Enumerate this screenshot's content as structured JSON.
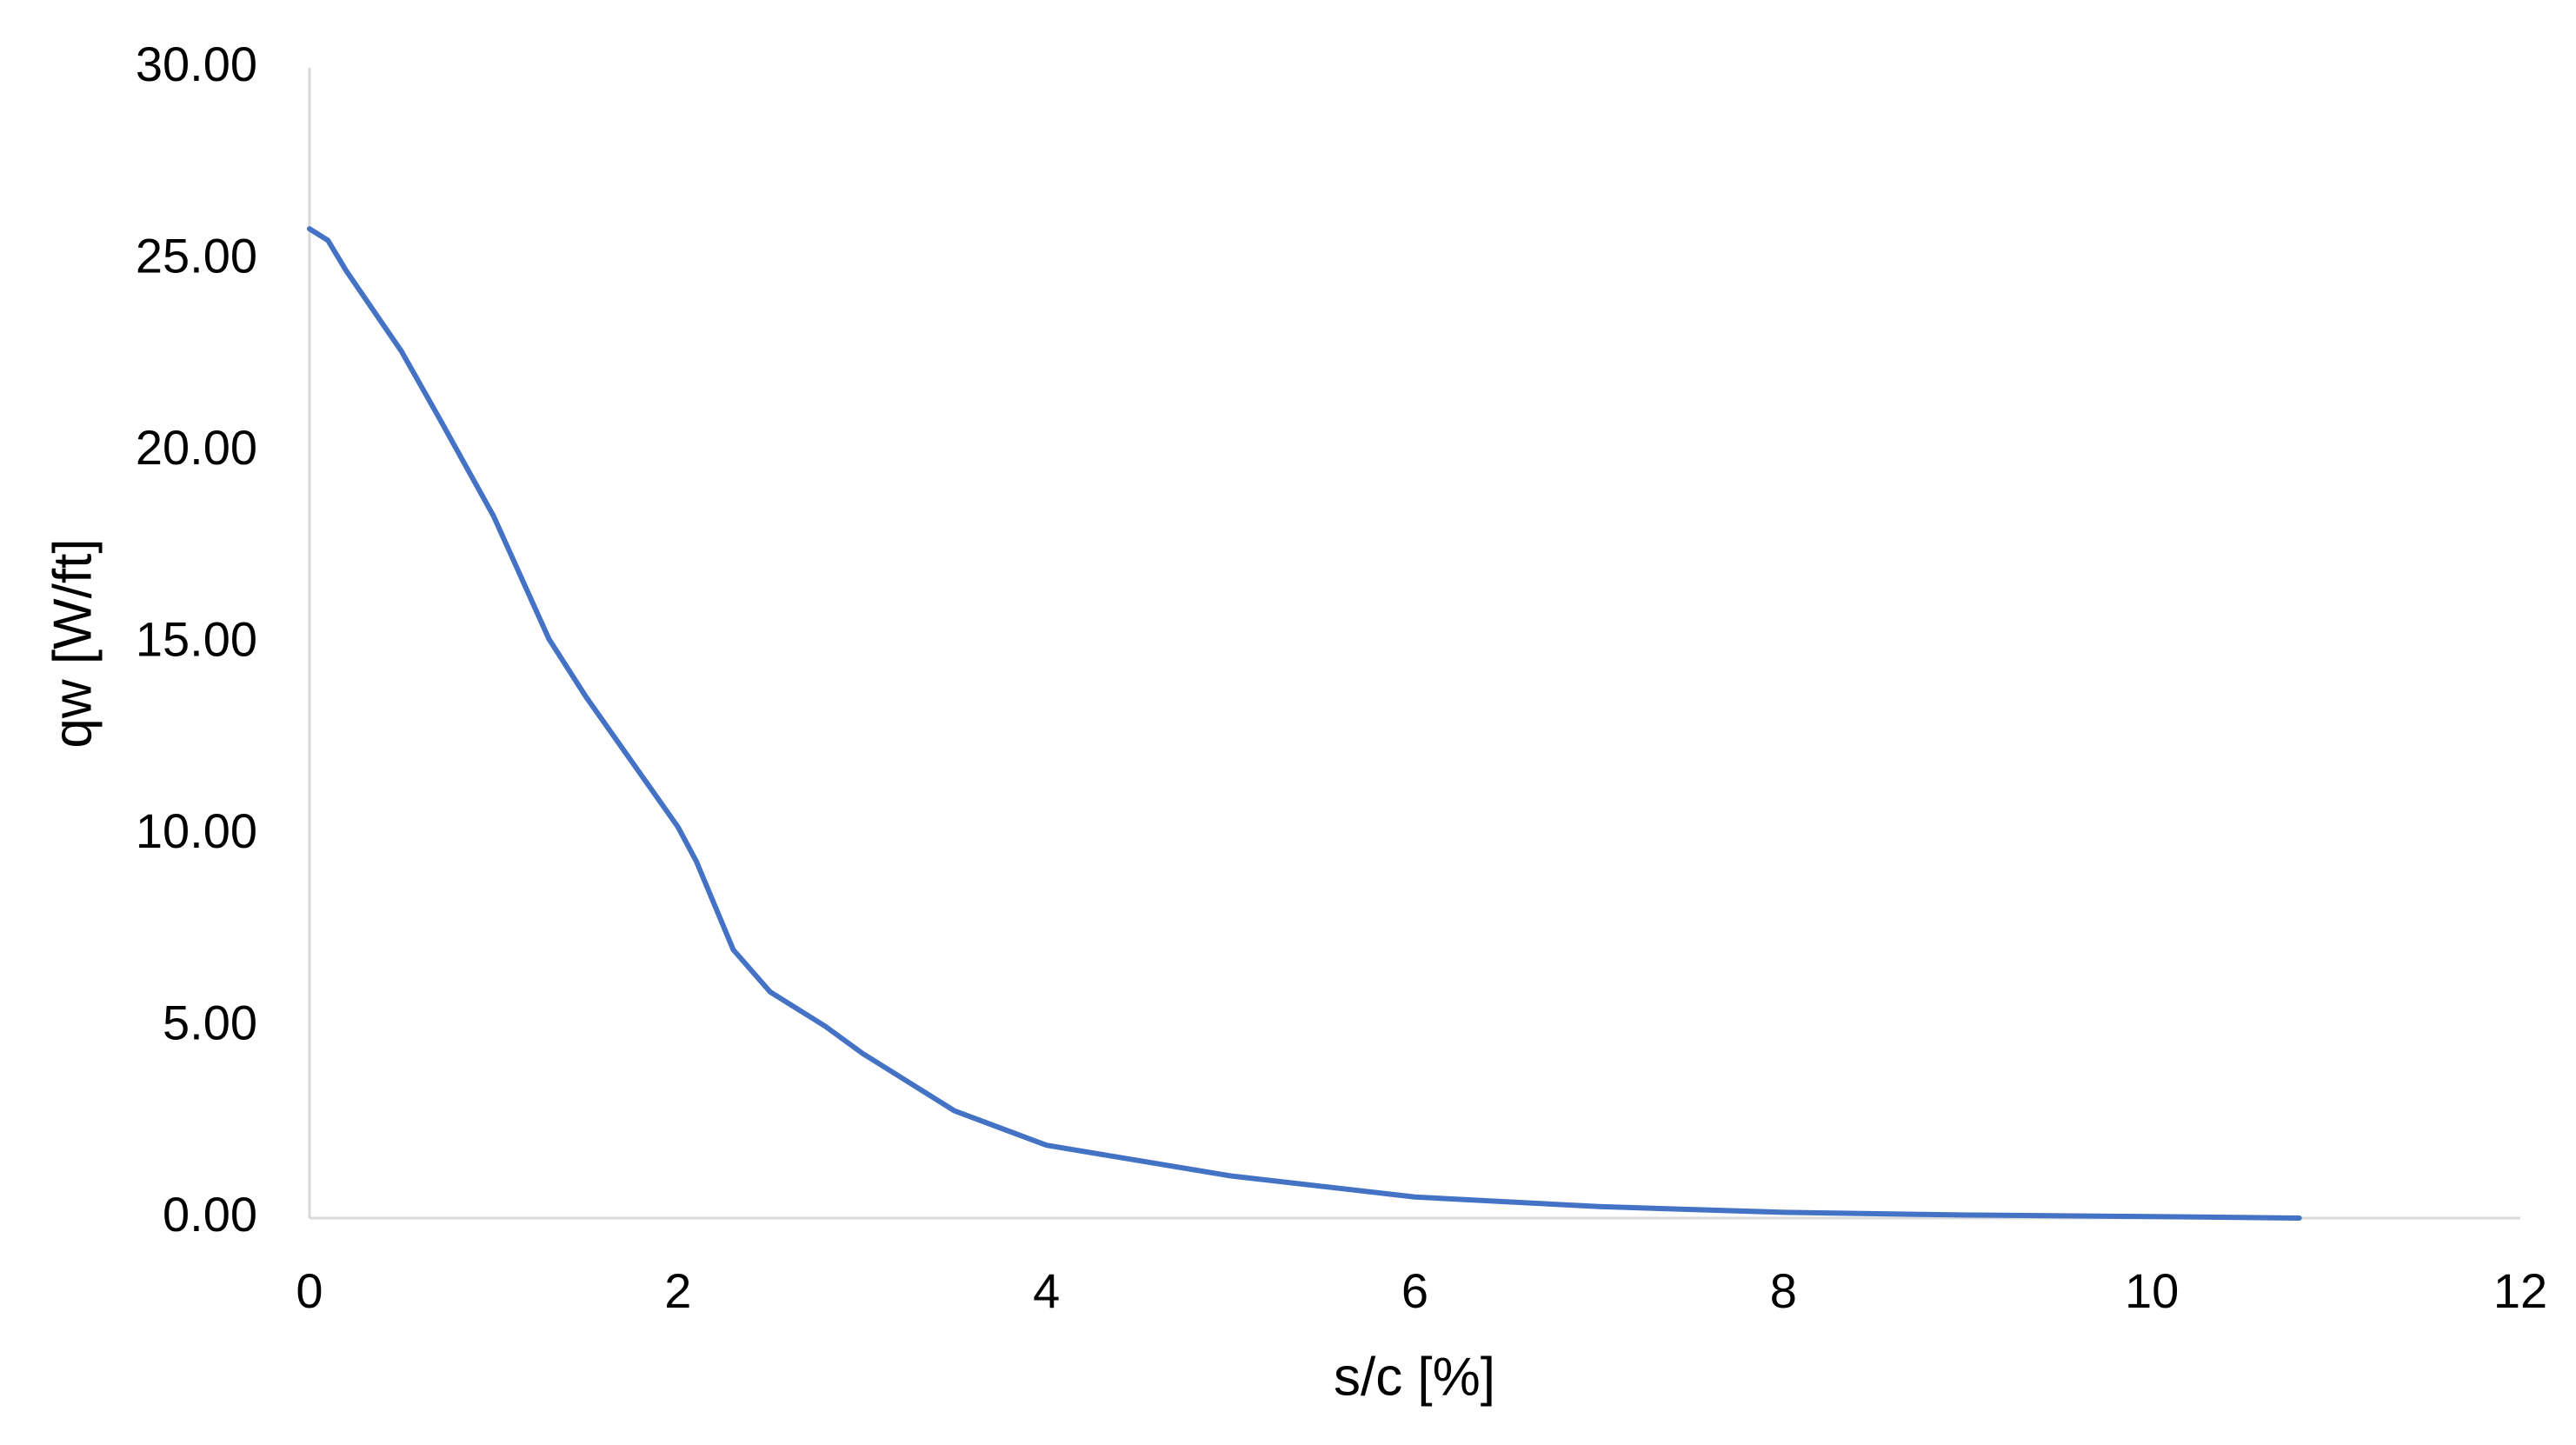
{
  "chart_data": {
    "type": "line",
    "x_label": "s/c [%]",
    "y_label": "qw [W/ft]",
    "x": [
      0,
      0.1,
      0.2,
      0.5,
      0.7,
      1.0,
      1.3,
      1.5,
      2.0,
      2.1,
      2.3,
      2.5,
      2.8,
      3.0,
      3.5,
      4.0,
      5.0,
      6.0,
      7.0,
      8.0,
      9.0,
      10.0,
      10.8
    ],
    "series": [
      {
        "name": "qw",
        "color": "#4472c4",
        "values": [
          25.8,
          25.5,
          24.7,
          22.6,
          20.9,
          18.3,
          15.1,
          13.6,
          10.2,
          9.3,
          7.0,
          5.9,
          5.0,
          4.3,
          2.8,
          1.9,
          1.1,
          0.55,
          0.3,
          0.15,
          0.08,
          0.04,
          0.0
        ]
      }
    ],
    "xlim": [
      0,
      12
    ],
    "xticks": [
      0,
      2,
      4,
      6,
      8,
      10,
      12
    ],
    "ylim": [
      0,
      30
    ],
    "yticks": [
      {
        "value": 0,
        "label": "0.00"
      },
      {
        "value": 5,
        "label": "5.00"
      },
      {
        "value": 10,
        "label": "10.00"
      },
      {
        "value": 15,
        "label": "15.00"
      },
      {
        "value": 20,
        "label": "20.00"
      },
      {
        "value": 25,
        "label": "25.00"
      },
      {
        "value": 30,
        "label": "30.00"
      }
    ],
    "grid": false
  }
}
